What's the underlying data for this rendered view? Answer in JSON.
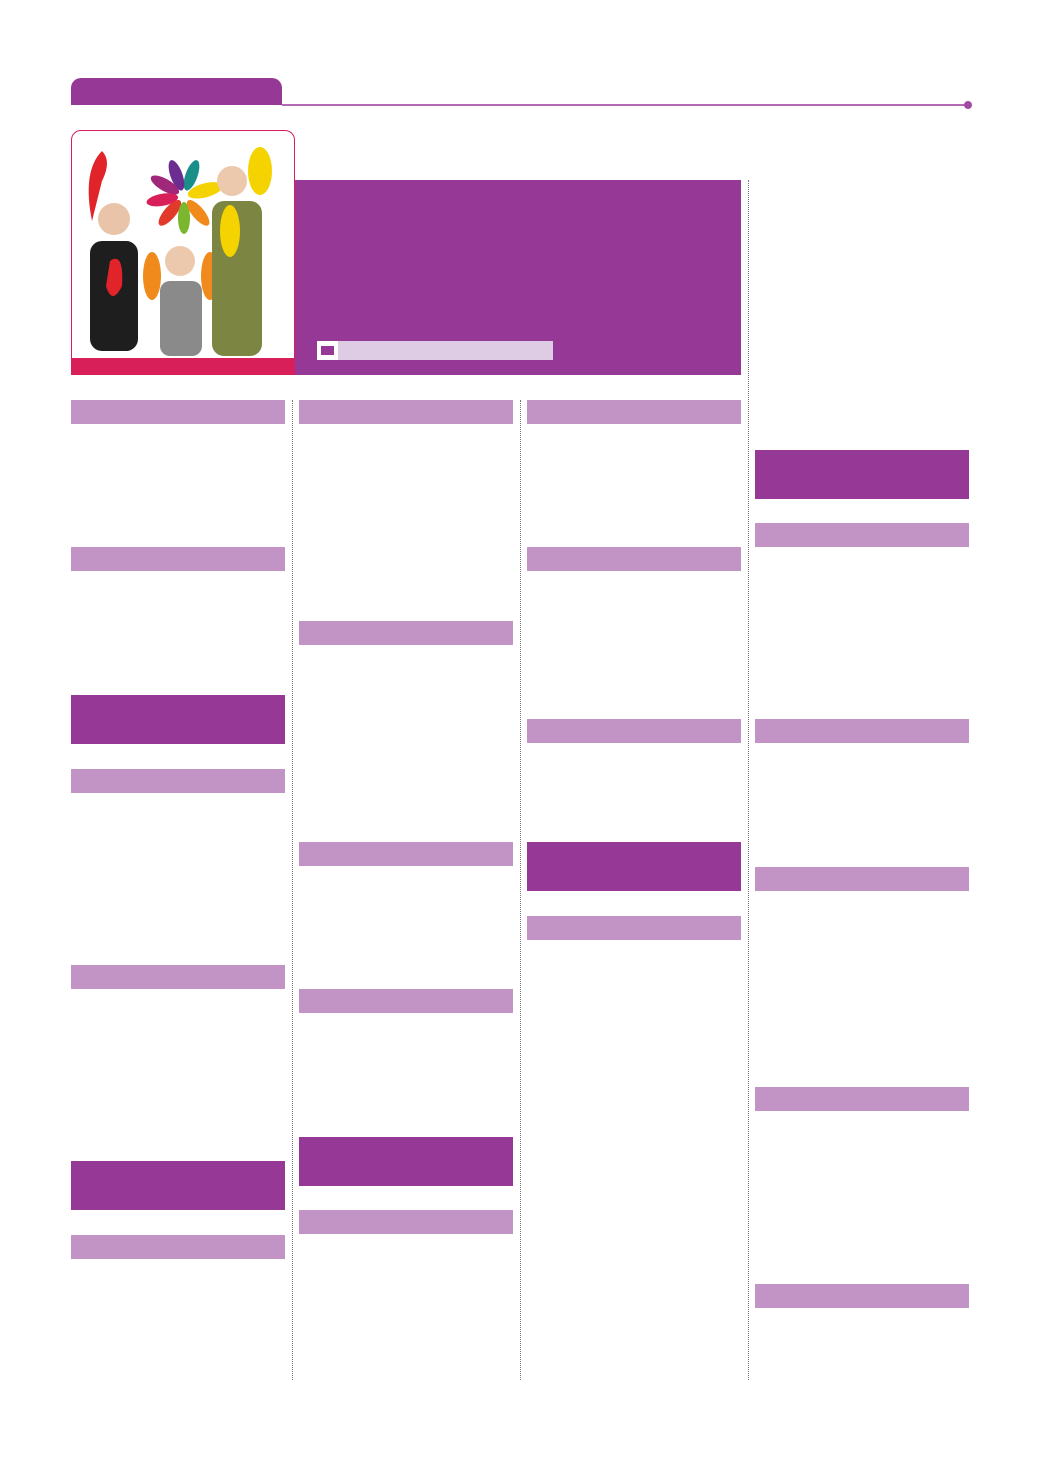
{
  "colors": {
    "primary_purple": "#963895",
    "light_purple": "#c194c5",
    "pale_purple": "#ddcce3",
    "accent_pink": "#d81f5a"
  },
  "header": {
    "tab_label": ""
  },
  "hero": {
    "icon": "comment-card-icon",
    "caption": ""
  },
  "columns": [
    {
      "sections": [
        "light",
        "light",
        "dark",
        "light",
        "light",
        "dark",
        "light"
      ]
    },
    {
      "sections": [
        "light",
        "light",
        "light",
        "light",
        "dark",
        "light"
      ]
    },
    {
      "sections": [
        "light",
        "light",
        "light",
        "dark",
        "light"
      ]
    },
    {
      "sections": [
        "dark",
        "light",
        "light",
        "light",
        "light",
        "light"
      ]
    }
  ]
}
